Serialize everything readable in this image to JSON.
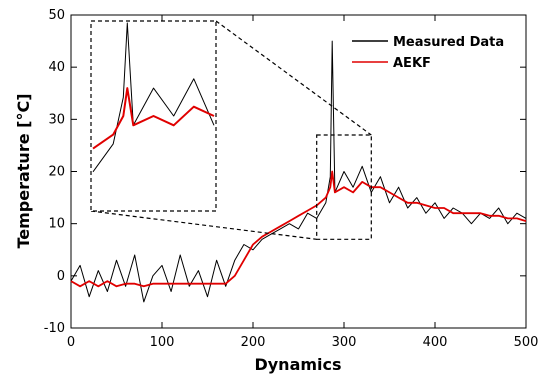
{
  "chart_data": {
    "type": "line",
    "title": "",
    "xlabel": "Dynamics",
    "ylabel": "Temperature [°C]",
    "xlim": [
      0,
      500
    ],
    "ylim": [
      -10,
      50
    ],
    "x_ticks": [
      0,
      100,
      200,
      300,
      400,
      500
    ],
    "y_ticks": [
      -10,
      0,
      10,
      20,
      30,
      40,
      50
    ],
    "grid": false,
    "legend_position": "top-right",
    "colors": {
      "measured": "#000000",
      "aekf": "#e00000"
    },
    "series": [
      {
        "name": "Measured Data",
        "x": [
          0,
          10,
          20,
          30,
          40,
          50,
          60,
          70,
          80,
          90,
          100,
          110,
          120,
          130,
          140,
          150,
          160,
          170,
          180,
          190,
          200,
          210,
          220,
          230,
          240,
          250,
          260,
          270,
          280,
          285,
          287,
          290,
          300,
          310,
          320,
          330,
          340,
          350,
          360,
          370,
          380,
          390,
          400,
          410,
          420,
          430,
          440,
          450,
          460,
          470,
          480,
          490,
          500
        ],
        "y": [
          -1,
          2,
          -4,
          1,
          -3,
          3,
          -2,
          4,
          -5,
          0,
          2,
          -3,
          4,
          -2,
          1,
          -4,
          3,
          -2,
          3,
          6,
          5,
          7,
          8,
          9,
          10,
          9,
          12,
          11,
          14,
          19,
          45,
          16,
          20,
          17,
          21,
          16,
          19,
          14,
          17,
          13,
          15,
          12,
          14,
          11,
          13,
          12,
          10,
          12,
          11,
          13,
          10,
          12,
          11
        ]
      },
      {
        "name": "AEKF",
        "x": [
          0,
          10,
          20,
          30,
          40,
          50,
          60,
          70,
          80,
          90,
          100,
          110,
          120,
          130,
          140,
          150,
          160,
          170,
          180,
          190,
          200,
          210,
          220,
          230,
          240,
          250,
          260,
          270,
          280,
          285,
          287,
          290,
          300,
          310,
          320,
          330,
          340,
          350,
          360,
          370,
          380,
          390,
          400,
          410,
          420,
          430,
          440,
          450,
          460,
          470,
          480,
          490,
          500
        ],
        "y": [
          -1,
          -2,
          -1,
          -2,
          -1,
          -2,
          -1.5,
          -1.5,
          -2,
          -1.5,
          -1.5,
          -1.5,
          -1.5,
          -1.5,
          -1.5,
          -1.5,
          -1.5,
          -1.5,
          0,
          3,
          6,
          7.5,
          8.5,
          9.5,
          10.5,
          11.5,
          12.5,
          13.5,
          15,
          17,
          20,
          16,
          17,
          16,
          18,
          17,
          17,
          16,
          15,
          14,
          14,
          13.5,
          13,
          13,
          12,
          12,
          12,
          12,
          11.5,
          11.5,
          11,
          11,
          10.5
        ]
      }
    ],
    "inset": {
      "zoom_xlim": [
        270,
        330
      ],
      "zoom_ylim": [
        7,
        27
      ]
    }
  },
  "legend": {
    "measured_label": "Measured Data",
    "aekf_label": "AEKF"
  }
}
